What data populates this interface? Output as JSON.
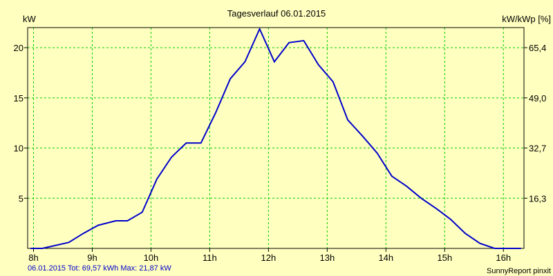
{
  "chart_data": {
    "type": "line",
    "title": "Tagesverlauf 06.01.2015",
    "ylabel_left": "kW",
    "ylabel_right": "kW/kWp [%]",
    "x_ticks": [
      "8h",
      "9h",
      "10h",
      "11h",
      "12h",
      "13h",
      "14h",
      "15h",
      "16h"
    ],
    "x_tick_values": [
      8,
      9,
      10,
      11,
      12,
      13,
      14,
      15,
      16
    ],
    "y_ticks": [
      "5",
      "10",
      "15",
      "20"
    ],
    "y_tick_values": [
      5,
      10,
      15,
      20
    ],
    "y_right_ticks": [
      "16,3",
      "32,7",
      "49,0",
      "65,4"
    ],
    "xlim": [
      7.9,
      16.35
    ],
    "ylim": [
      0,
      22
    ],
    "grid": true,
    "colors": {
      "background": "#ffffc0",
      "line": "#0000cc",
      "grid": "#00cc00",
      "axis": "#000000"
    },
    "series": [
      {
        "values": [
          [
            7.95,
            0
          ],
          [
            8.15,
            0
          ],
          [
            8.3,
            0.2
          ],
          [
            8.6,
            0.6
          ],
          [
            8.85,
            1.5
          ],
          [
            9.1,
            2.3
          ],
          [
            9.4,
            2.75
          ],
          [
            9.6,
            2.75
          ],
          [
            9.85,
            3.6
          ],
          [
            10.1,
            6.9
          ],
          [
            10.35,
            9.1
          ],
          [
            10.6,
            10.5
          ],
          [
            10.85,
            10.5
          ],
          [
            11.1,
            13.5
          ],
          [
            11.35,
            16.9
          ],
          [
            11.6,
            18.6
          ],
          [
            11.85,
            21.87
          ],
          [
            12.1,
            18.6
          ],
          [
            12.35,
            20.5
          ],
          [
            12.6,
            20.7
          ],
          [
            12.85,
            18.3
          ],
          [
            13.1,
            16.6
          ],
          [
            13.35,
            12.8
          ],
          [
            13.6,
            11.2
          ],
          [
            13.85,
            9.5
          ],
          [
            14.1,
            7.2
          ],
          [
            14.35,
            6.2
          ],
          [
            14.6,
            5.0
          ],
          [
            14.85,
            4.0
          ],
          [
            15.1,
            2.9
          ],
          [
            15.35,
            1.5
          ],
          [
            15.6,
            0.5
          ],
          [
            15.85,
            0
          ],
          [
            16.3,
            0
          ]
        ]
      }
    ]
  },
  "footer": {
    "left": "06.01.2015 Tot: 69,57 kWh Max: 21,87 kW",
    "right": "SunnyReport pinxit"
  }
}
